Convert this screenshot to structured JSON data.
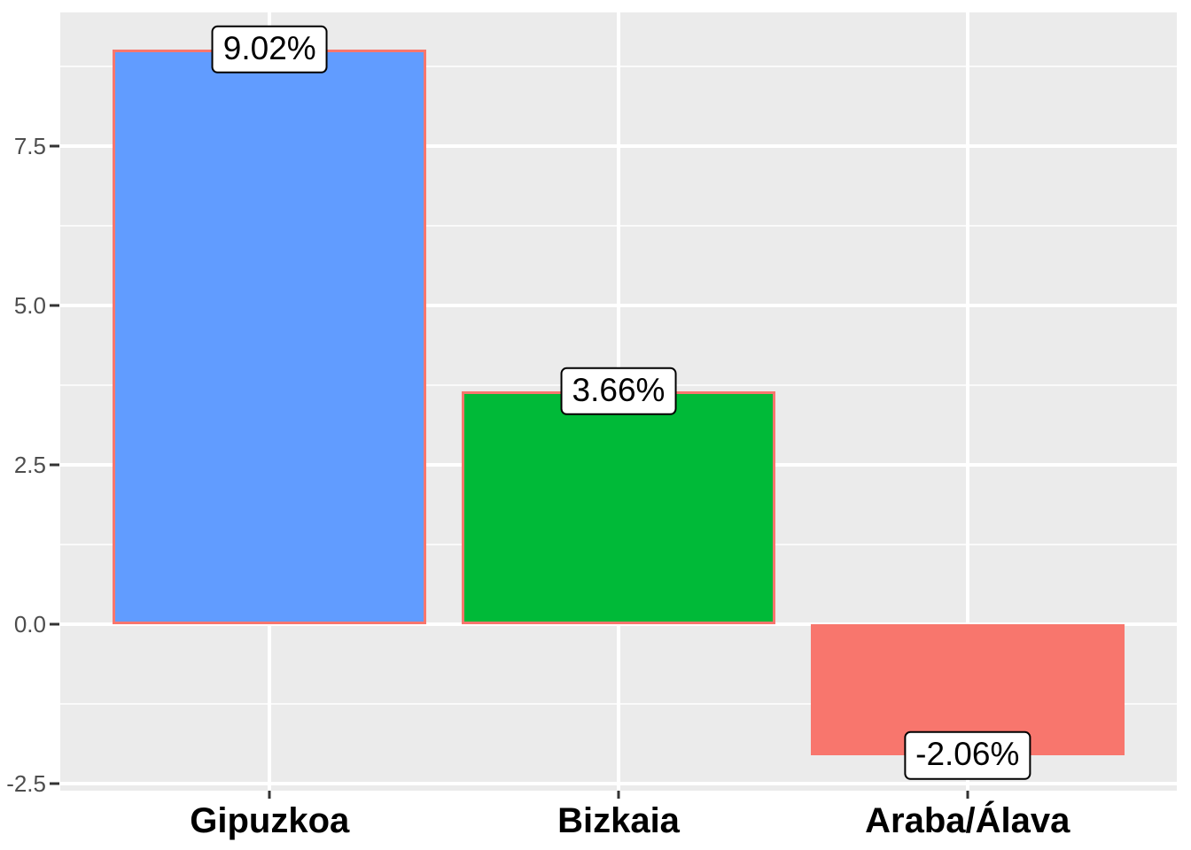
{
  "chart_data": {
    "type": "bar",
    "title": "",
    "xlabel": "",
    "ylabel": "",
    "legend_position": "none",
    "grid": "major+minor horizontal, major vertical",
    "categories": [
      "Gipuzkoa",
      "Bizkaia",
      "Araba/Álava"
    ],
    "values": [
      9.02,
      3.66,
      -2.06
    ],
    "bar_labels": [
      "9.02%",
      "3.66%",
      "-2.06%"
    ],
    "bar_fill_colors": [
      "#619CFF",
      "#00BA38",
      "#F8766D"
    ],
    "bar_border_color": "#F8766D",
    "ylim": [
      -2.61,
      9.6
    ],
    "y_axis": {
      "tick_values": [
        7.5,
        5.0,
        2.5,
        0.0,
        -2.5
      ],
      "tick_labels": [
        "7.5",
        "5.0",
        "2.5",
        "0.0",
        "-2.5"
      ],
      "minor_gridline_values": [
        8.75,
        6.25,
        3.75,
        1.25,
        -1.25
      ]
    },
    "colors": {
      "panel_background": "#EBEBEB",
      "gridline": "#FFFFFF",
      "tick_mark": "#333333",
      "y_tick_text": "#4D4D4D",
      "x_tick_text": "#000000",
      "label_box_background": "#FFFFFF",
      "label_box_border": "#000000"
    }
  }
}
